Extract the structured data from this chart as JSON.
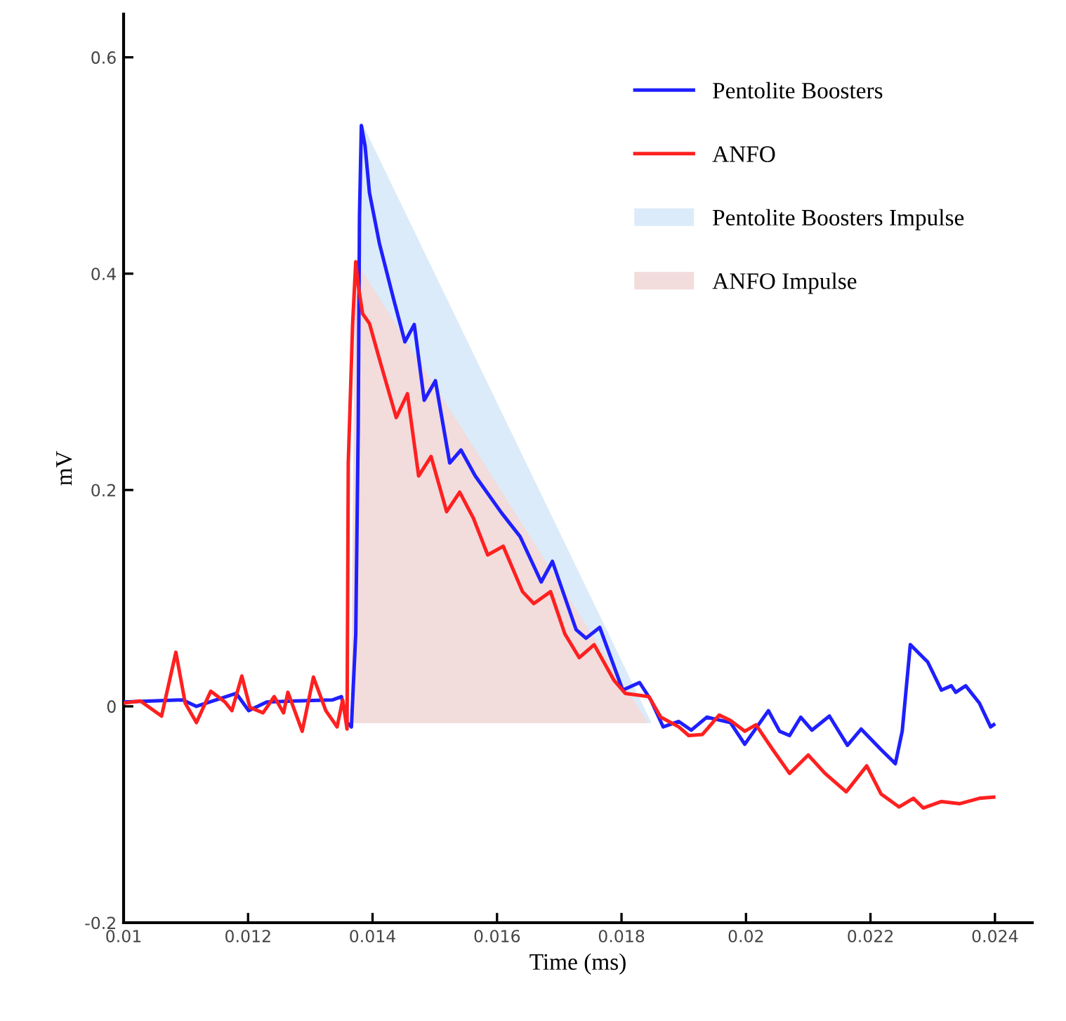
{
  "chart_data": {
    "type": "line",
    "xlabel": "Time (ms)",
    "ylabel": "mV",
    "xlim": [
      0.01,
      0.0246
    ],
    "ylim": [
      -0.2,
      0.64
    ],
    "xticks": [
      0.01,
      0.012,
      0.014,
      0.016,
      0.018,
      0.02,
      0.022,
      0.024
    ],
    "yticks": [
      -0.2,
      0,
      0.2,
      0.4,
      0.6
    ],
    "grid": false,
    "legend": "top right",
    "marker": "none",
    "line_style": "solid",
    "series": [
      {
        "name": "Pentolite Boosters Impulse",
        "type": "area",
        "color": "#dcebf9",
        "x": [
          0.01373,
          0.01384,
          0.01847
        ],
        "values": [
          -0.015,
          0.537,
          -0.015
        ]
      },
      {
        "name": "ANFO Impulse",
        "type": "area",
        "color": "#f2dcdc",
        "x": [
          0.01366,
          0.01373,
          0.01841
        ],
        "values": [
          -0.015,
          0.411,
          -0.015
        ]
      },
      {
        "name": "Pentolite Boosters",
        "color": "#1f1fff",
        "x": [
          0.01,
          0.01095,
          0.01117,
          0.01181,
          0.01201,
          0.0123,
          0.01275,
          0.01336,
          0.0135,
          0.01359,
          0.01366,
          0.01373,
          0.01377,
          0.01379,
          0.01382,
          0.01388,
          0.01395,
          0.01411,
          0.01434,
          0.01452,
          0.01467,
          0.01483,
          0.01501,
          0.01524,
          0.01542,
          0.01565,
          0.01607,
          0.01637,
          0.01671,
          0.01689,
          0.01727,
          0.01743,
          0.01765,
          0.01802,
          0.01829,
          0.01847,
          0.01867,
          0.01892,
          0.01912,
          0.01937,
          0.01975,
          0.01998,
          0.02036,
          0.02054,
          0.0207,
          0.02088,
          0.02106,
          0.02134,
          0.02163,
          0.02185,
          0.02217,
          0.0224,
          0.02251,
          0.02264,
          0.02292,
          0.02314,
          0.0233,
          0.02337,
          0.02353,
          0.02375,
          0.02393,
          0.02398
        ],
        "values": [
          0.004,
          0.006,
          0,
          0.012,
          -0.004,
          0.004,
          0.005,
          0.006,
          0.009,
          -0.015,
          -0.019,
          0.067,
          0.26,
          0.453,
          0.537,
          0.518,
          0.475,
          0.428,
          0.376,
          0.337,
          0.353,
          0.283,
          0.301,
          0.225,
          0.237,
          0.213,
          0.179,
          0.157,
          0.115,
          0.134,
          0.071,
          0.063,
          0.073,
          0.015,
          0.022,
          0.006,
          -0.019,
          -0.014,
          -0.022,
          -0.01,
          -0.015,
          -0.035,
          -0.004,
          -0.023,
          -0.027,
          -0.01,
          -0.022,
          -0.009,
          -0.036,
          -0.021,
          -0.04,
          -0.053,
          -0.023,
          0.057,
          0.041,
          0.015,
          0.019,
          0.013,
          0.019,
          0.003,
          -0.019,
          -0.017
        ]
      },
      {
        "name": "ANFO",
        "color": "#ff2020",
        "x": [
          0.01,
          0.01027,
          0.01061,
          0.01084,
          0.01099,
          0.01117,
          0.0114,
          0.01163,
          0.01174,
          0.0119,
          0.01203,
          0.01224,
          0.01242,
          0.01257,
          0.01264,
          0.01287,
          0.01305,
          0.01325,
          0.01343,
          0.01352,
          0.01359,
          0.01361,
          0.01368,
          0.01373,
          0.01377,
          0.01384,
          0.01395,
          0.01411,
          0.01438,
          0.01456,
          0.01474,
          0.01494,
          0.01519,
          0.0154,
          0.01562,
          0.01585,
          0.0161,
          0.01641,
          0.01659,
          0.01686,
          0.01709,
          0.01732,
          0.01756,
          0.01788,
          0.01806,
          0.01844,
          0.01863,
          0.01892,
          0.01908,
          0.0193,
          0.01957,
          0.01975,
          0.01998,
          0.02016,
          0.02043,
          0.0207,
          0.021,
          0.02127,
          0.02161,
          0.02194,
          0.02217,
          0.02246,
          0.02269,
          0.02285,
          0.02314,
          0.02343,
          0.02375,
          0.02398
        ],
        "values": [
          0.003,
          0.005,
          -0.009,
          0.05,
          0.003,
          -0.015,
          0.014,
          0.004,
          -0.004,
          0.028,
          -0.001,
          -0.006,
          0.009,
          -0.006,
          0.013,
          -0.023,
          0.027,
          -0.004,
          -0.019,
          0.006,
          -0.021,
          0.225,
          0.354,
          0.411,
          0.389,
          0.363,
          0.354,
          0.321,
          0.267,
          0.289,
          0.213,
          0.231,
          0.18,
          0.198,
          0.174,
          0.14,
          0.148,
          0.106,
          0.095,
          0.106,
          0.067,
          0.045,
          0.057,
          0.024,
          0.012,
          0.009,
          -0.01,
          -0.019,
          -0.027,
          -0.026,
          -0.008,
          -0.013,
          -0.023,
          -0.017,
          -0.04,
          -0.062,
          -0.045,
          -0.062,
          -0.079,
          -0.055,
          -0.081,
          -0.093,
          -0.085,
          -0.094,
          -0.088,
          -0.09,
          -0.085,
          -0.084
        ]
      }
    ]
  }
}
